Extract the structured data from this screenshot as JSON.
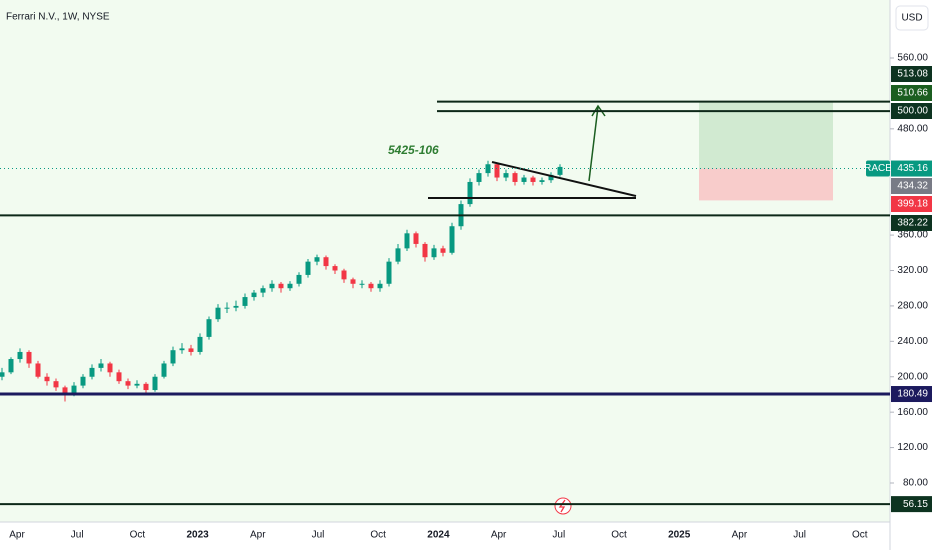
{
  "header": {
    "title": "Ferrari N.V., 1W, NYSE",
    "currency": "USD"
  },
  "annotation": "5425-106",
  "price_axis": {
    "ticks": [
      {
        "value": 560,
        "label": "560.00"
      },
      {
        "value": 480,
        "label": "480.00"
      },
      {
        "value": 360,
        "label": "360.00"
      },
      {
        "value": 320,
        "label": "320.00"
      },
      {
        "value": 280,
        "label": "280.00"
      },
      {
        "value": 240,
        "label": "240.00"
      },
      {
        "value": 200,
        "label": "200.00"
      },
      {
        "value": 160,
        "label": "160.00"
      },
      {
        "value": 120,
        "label": "120.00"
      },
      {
        "value": 80,
        "label": "80.00"
      }
    ]
  },
  "time_axis": {
    "labels": [
      "Apr",
      "Jul",
      "Oct",
      "2023",
      "Apr",
      "Jul",
      "Oct",
      "2024",
      "Apr",
      "Jul",
      "Oct",
      "2025",
      "Apr",
      "Jul",
      "Oct"
    ]
  },
  "symbol": {
    "name": "RACE",
    "price": {
      "value": 435.16,
      "label": "435.16"
    }
  },
  "levels": [
    {
      "value": 513.08,
      "label": "513.08",
      "color": "#0d3320"
    },
    {
      "value": 510.66,
      "label": "510.66",
      "color": "#1b5e20"
    },
    {
      "value": 500,
      "label": "500.00",
      "color": "#0d3320"
    },
    {
      "value": 434.32,
      "label": "434.32",
      "color": "#787b86"
    },
    {
      "value": 399.18,
      "label": "399.18",
      "color": "#f23645"
    },
    {
      "value": 382.22,
      "label": "382.22",
      "color": "#0d3320"
    },
    {
      "value": 180.49,
      "label": "180.49",
      "color": "#1c1a5e"
    },
    {
      "value": 56.15,
      "label": "56.15",
      "color": "#0d3320"
    }
  ],
  "candles": [
    [
      200,
      210,
      196,
      205
    ],
    [
      205,
      222,
      203,
      220
    ],
    [
      220,
      232,
      216,
      228
    ],
    [
      228,
      230,
      210,
      215
    ],
    [
      215,
      218,
      198,
      200
    ],
    [
      200,
      204,
      190,
      195
    ],
    [
      195,
      198,
      184,
      188
    ],
    [
      188,
      190,
      172,
      180
    ],
    [
      180,
      194,
      178,
      190
    ],
    [
      190,
      203,
      187,
      200
    ],
    [
      200,
      214,
      197,
      210
    ],
    [
      210,
      220,
      206,
      215
    ],
    [
      215,
      217,
      200,
      205
    ],
    [
      205,
      208,
      192,
      195
    ],
    [
      195,
      198,
      186,
      190
    ],
    [
      190,
      196,
      187,
      192
    ],
    [
      192,
      194,
      180,
      185
    ],
    [
      185,
      203,
      183,
      200
    ],
    [
      200,
      218,
      198,
      215
    ],
    [
      215,
      234,
      212,
      230
    ],
    [
      230,
      238,
      226,
      232
    ],
    [
      232,
      236,
      224,
      228
    ],
    [
      228,
      249,
      225,
      245
    ],
    [
      245,
      268,
      242,
      265
    ],
    [
      265,
      282,
      262,
      278
    ],
    [
      278,
      284,
      272,
      278
    ],
    [
      278,
      286,
      274,
      280
    ],
    [
      280,
      294,
      277,
      290
    ],
    [
      290,
      298,
      286,
      295
    ],
    [
      295,
      303,
      290,
      300
    ],
    [
      300,
      309,
      296,
      305
    ],
    [
      305,
      307,
      295,
      300
    ],
    [
      300,
      308,
      297,
      305
    ],
    [
      305,
      318,
      302,
      315
    ],
    [
      315,
      333,
      312,
      330
    ],
    [
      330,
      338,
      326,
      335
    ],
    [
      335,
      337,
      321,
      325
    ],
    [
      325,
      327,
      316,
      320
    ],
    [
      320,
      322,
      306,
      310
    ],
    [
      310,
      312,
      300,
      305
    ],
    [
      305,
      309,
      300,
      305
    ],
    [
      305,
      307,
      296,
      300
    ],
    [
      300,
      309,
      296,
      305
    ],
    [
      305,
      334,
      302,
      330
    ],
    [
      330,
      350,
      327,
      345
    ],
    [
      345,
      366,
      342,
      362
    ],
    [
      362,
      364,
      346,
      350
    ],
    [
      350,
      352,
      330,
      335
    ],
    [
      335,
      349,
      332,
      345
    ],
    [
      345,
      348,
      336,
      340
    ],
    [
      340,
      374,
      338,
      370
    ],
    [
      370,
      399,
      366,
      395
    ],
    [
      395,
      424,
      392,
      420
    ],
    [
      420,
      434,
      416,
      430
    ],
    [
      430,
      444,
      426,
      440
    ],
    [
      440,
      442,
      421,
      425
    ],
    [
      425,
      434,
      421,
      430
    ],
    [
      430,
      432,
      416,
      420
    ],
    [
      420,
      428,
      417,
      425
    ],
    [
      425,
      427,
      416,
      420
    ],
    [
      420,
      425,
      417,
      422
    ],
    [
      422,
      431,
      419,
      428
    ],
    [
      428,
      440,
      426,
      437
    ]
  ]
}
